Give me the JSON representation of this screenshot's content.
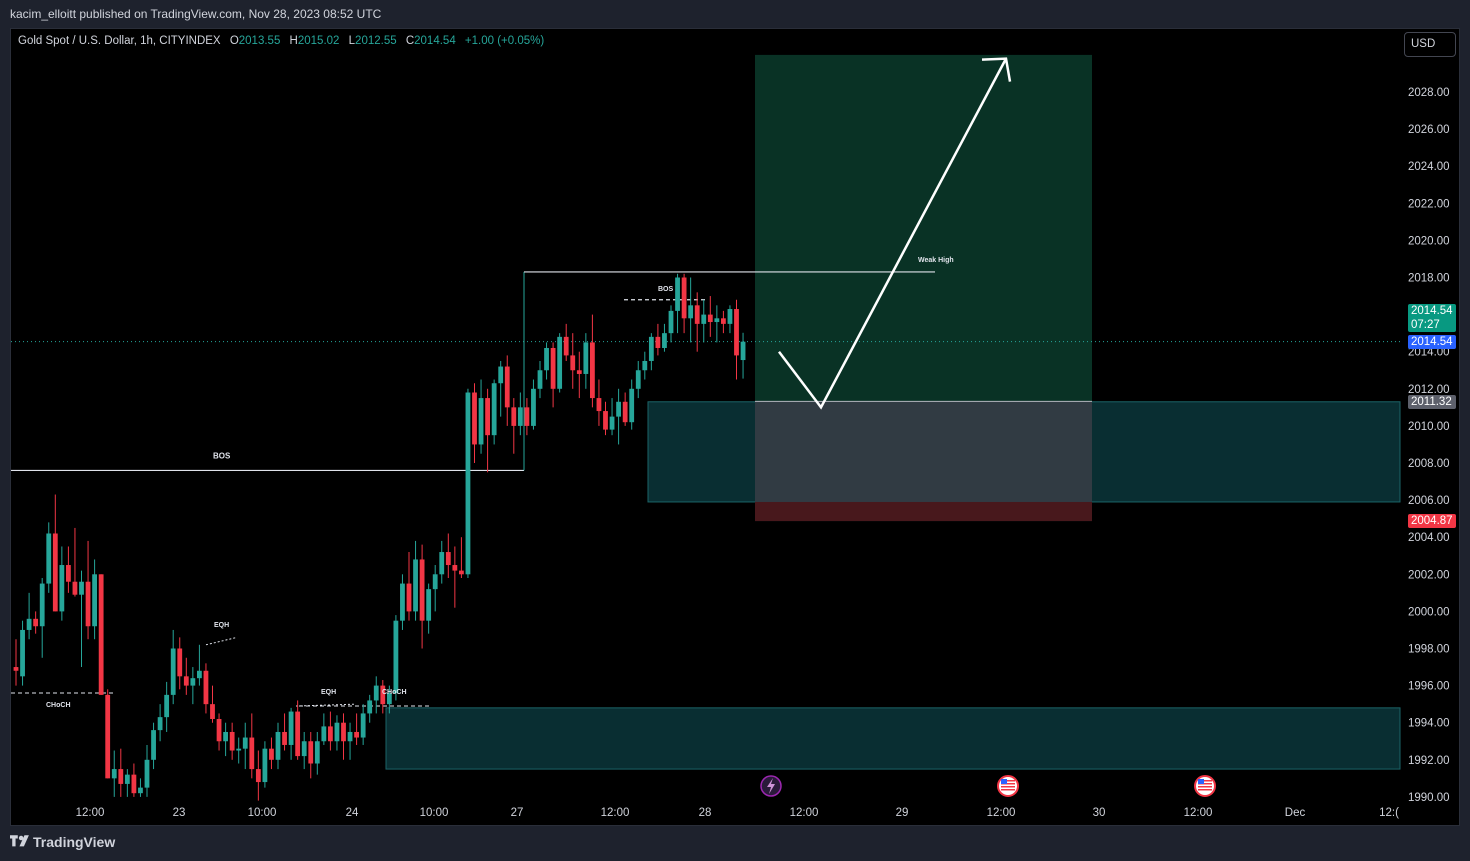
{
  "header": {
    "publisher_line": "kacim_elloitt published on TradingView.com, Nov 28, 2023 08:52 UTC"
  },
  "legend": {
    "symbol": "Gold Spot / U.S. Dollar, 1h, CITYINDEX",
    "open_label": "O",
    "open": "2013.55",
    "high_label": "H",
    "high": "2015.02",
    "low_label": "L",
    "low": "2012.55",
    "close_label": "C",
    "close": "2014.54",
    "change": "+1.00 (+0.05%)"
  },
  "currency_button": "USD",
  "price_tags": {
    "last_price": "2014.54",
    "countdown": "07:27",
    "blue_price": "2014.54",
    "entry_price": "2011.32",
    "stop_price": "2004.87"
  },
  "colors": {
    "up": "#26a69a",
    "down": "#f23645",
    "profit_zone": "#0b3b2c",
    "loss_zone": "#4a161a",
    "demand_zone": "#0b3338",
    "entry_zone": "#343c44",
    "last_price_tag": "#089981",
    "blue_tag": "#2962ff",
    "stop_tag": "#f23645",
    "entry_tag": "#5d606b"
  },
  "annotations": {
    "bos_left": "BOS",
    "bos_right": "BOS",
    "weak_high": "Weak High",
    "eqh_1": "EQH",
    "eqh_2": "EQH",
    "choch_1": "CHoCH",
    "choch_2": "CHoCH"
  },
  "event_icons": [
    "lightning-icon",
    "us-flag-icon",
    "us-flag-icon"
  ],
  "footer": {
    "brand": "TradingView"
  },
  "chart_data": {
    "type": "candlestick",
    "title": "Gold Spot / U.S. Dollar, 1h, CITYINDEX",
    "ylim": [
      1990,
      2030
    ],
    "y_ticks": [
      "2028.00",
      "2026.00",
      "2024.00",
      "2022.00",
      "2020.00",
      "2018.00",
      "2016.00",
      "2014.00",
      "2012.00",
      "2010.00",
      "2008.00",
      "2006.00",
      "2004.00",
      "2002.00",
      "2000.00",
      "1998.00",
      "1996.00",
      "1994.00",
      "1992.00",
      "1990.00"
    ],
    "x_ticks": [
      "12:00",
      "23",
      "10:00",
      "24",
      "10:00",
      "27",
      "12:00",
      "28",
      "12:00",
      "29",
      "12:00",
      "30",
      "12:00",
      "Dec",
      "12:("
    ],
    "levels": {
      "bos_left": 2007.6,
      "bos_right": 2016.8,
      "weak_high": 2018.3,
      "choch_left": 1995.6,
      "choch_right": 1994.9,
      "last_price": 2014.54,
      "entry": 2011.32,
      "stop": 2004.87,
      "target": 2030.0
    },
    "zones": {
      "demand_high": [
        2011.3,
        2005.9
      ],
      "demand_low": [
        1994.8,
        1991.5
      ]
    },
    "projection_path": [
      2014.0,
      2011.0,
      2029.8
    ],
    "candles": [
      {
        "o": 1997.0,
        "h": 1998.5,
        "l": 1996.0,
        "c": 1996.8
      },
      {
        "o": 1996.5,
        "h": 1999.5,
        "l": 1996.0,
        "c": 1999.0
      },
      {
        "o": 1999.0,
        "h": 2001.0,
        "l": 1998.5,
        "c": 1999.6
      },
      {
        "o": 1999.6,
        "h": 2000.0,
        "l": 1998.8,
        "c": 1999.2
      },
      {
        "o": 1999.2,
        "h": 2001.8,
        "l": 1997.5,
        "c": 2001.5
      },
      {
        "o": 2001.5,
        "h": 2004.8,
        "l": 2001.0,
        "c": 2004.2
      },
      {
        "o": 2004.2,
        "h": 2006.3,
        "l": 2000.0,
        "c": 2000.0
      },
      {
        "o": 2000.0,
        "h": 2003.5,
        "l": 1999.5,
        "c": 2002.5
      },
      {
        "o": 2002.5,
        "h": 2003.5,
        "l": 2001.0,
        "c": 2001.6
      },
      {
        "o": 2001.6,
        "h": 2004.5,
        "l": 2000.8,
        "c": 2000.9
      },
      {
        "o": 2000.9,
        "h": 2002.2,
        "l": 1997.0,
        "c": 2001.6
      },
      {
        "o": 2001.6,
        "h": 2003.8,
        "l": 1998.5,
        "c": 1999.2
      },
      {
        "o": 1999.2,
        "h": 2002.8,
        "l": 1998.5,
        "c": 2002.0
      },
      {
        "o": 2002.0,
        "h": 2002.0,
        "l": 1995.5,
        "c": 1995.5
      },
      {
        "o": 1995.5,
        "h": 1995.8,
        "l": 1991.0,
        "c": 1991.0
      },
      {
        "o": 1991.0,
        "h": 1992.5,
        "l": 1990.0,
        "c": 1991.5
      },
      {
        "o": 1991.5,
        "h": 1992.6,
        "l": 1990.0,
        "c": 1990.7
      },
      {
        "o": 1990.7,
        "h": 1991.5,
        "l": 1990.0,
        "c": 1991.2
      },
      {
        "o": 1991.2,
        "h": 1991.8,
        "l": 1990.0,
        "c": 1990.2
      },
      {
        "o": 1990.2,
        "h": 1991.0,
        "l": 1990.0,
        "c": 1990.5
      },
      {
        "o": 1990.5,
        "h": 1992.8,
        "l": 1990.0,
        "c": 1992.0
      },
      {
        "o": 1992.0,
        "h": 1994.0,
        "l": 1991.5,
        "c": 1993.6
      },
      {
        "o": 1993.6,
        "h": 1995.0,
        "l": 1993.0,
        "c": 1994.3
      },
      {
        "o": 1994.3,
        "h": 1996.2,
        "l": 1993.5,
        "c": 1995.5
      },
      {
        "o": 1995.5,
        "h": 1999.0,
        "l": 1995.0,
        "c": 1998.0
      },
      {
        "o": 1998.0,
        "h": 1998.6,
        "l": 1995.8,
        "c": 1996.5
      },
      {
        "o": 1996.5,
        "h": 1997.5,
        "l": 1995.5,
        "c": 1996.0
      },
      {
        "o": 1996.0,
        "h": 1997.0,
        "l": 1995.0,
        "c": 1996.4
      },
      {
        "o": 1996.4,
        "h": 1998.2,
        "l": 1996.0,
        "c": 1996.8
      },
      {
        "o": 1996.8,
        "h": 1997.2,
        "l": 1994.5,
        "c": 1995.0
      },
      {
        "o": 1995.0,
        "h": 1996.0,
        "l": 1994.0,
        "c": 1994.2
      },
      {
        "o": 1994.2,
        "h": 1994.5,
        "l": 1992.5,
        "c": 1993.0
      },
      {
        "o": 1993.0,
        "h": 1994.0,
        "l": 1992.2,
        "c": 1993.5
      },
      {
        "o": 1993.5,
        "h": 1994.0,
        "l": 1992.0,
        "c": 1992.5
      },
      {
        "o": 1992.5,
        "h": 1993.2,
        "l": 1991.8,
        "c": 1992.6
      },
      {
        "o": 1992.6,
        "h": 1994.0,
        "l": 1991.5,
        "c": 1993.2
      },
      {
        "o": 1993.2,
        "h": 1994.5,
        "l": 1991.0,
        "c": 1991.5
      },
      {
        "o": 1991.5,
        "h": 1992.5,
        "l": 1989.8,
        "c": 1990.8
      },
      {
        "o": 1990.8,
        "h": 1993.0,
        "l": 1990.5,
        "c": 1992.6
      },
      {
        "o": 1992.6,
        "h": 1993.2,
        "l": 1991.5,
        "c": 1992.0
      },
      {
        "o": 1992.0,
        "h": 1994.0,
        "l": 1991.5,
        "c": 1993.5
      },
      {
        "o": 1993.5,
        "h": 1994.5,
        "l": 1992.5,
        "c": 1992.8
      },
      {
        "o": 1992.8,
        "h": 1994.8,
        "l": 1992.0,
        "c": 1994.6
      },
      {
        "o": 1994.6,
        "h": 1995.2,
        "l": 1992.0,
        "c": 1992.2
      },
      {
        "o": 1992.2,
        "h": 1993.5,
        "l": 1991.5,
        "c": 1993.0
      },
      {
        "o": 1993.0,
        "h": 1993.5,
        "l": 1991.0,
        "c": 1991.8
      },
      {
        "o": 1991.8,
        "h": 1993.5,
        "l": 1991.2,
        "c": 1993.0
      },
      {
        "o": 1993.0,
        "h": 1994.5,
        "l": 1992.8,
        "c": 1993.8
      },
      {
        "o": 1993.8,
        "h": 1994.6,
        "l": 1992.5,
        "c": 1993.0
      },
      {
        "o": 1993.0,
        "h": 1994.4,
        "l": 1992.5,
        "c": 1994.0
      },
      {
        "o": 1994.0,
        "h": 1994.5,
        "l": 1992.0,
        "c": 1993.0
      },
      {
        "o": 1993.0,
        "h": 1994.0,
        "l": 1992.0,
        "c": 1993.5
      },
      {
        "o": 1993.5,
        "h": 1994.5,
        "l": 1992.8,
        "c": 1993.2
      },
      {
        "o": 1993.2,
        "h": 1995.0,
        "l": 1992.8,
        "c": 1994.5
      },
      {
        "o": 1994.5,
        "h": 1995.5,
        "l": 1994.0,
        "c": 1995.2
      },
      {
        "o": 1995.2,
        "h": 1996.5,
        "l": 1994.5,
        "c": 1996.0
      },
      {
        "o": 1996.0,
        "h": 1996.3,
        "l": 1994.5,
        "c": 1995.0
      },
      {
        "o": 1995.0,
        "h": 1996.0,
        "l": 1994.5,
        "c": 1995.6
      },
      {
        "o": 1995.6,
        "h": 1999.8,
        "l": 1995.2,
        "c": 1999.5
      },
      {
        "o": 1999.5,
        "h": 2002.0,
        "l": 1999.0,
        "c": 2001.5
      },
      {
        "o": 2001.5,
        "h": 2003.2,
        "l": 1999.5,
        "c": 2000.0
      },
      {
        "o": 2000.0,
        "h": 2003.8,
        "l": 1999.5,
        "c": 2002.8
      },
      {
        "o": 2002.8,
        "h": 2003.6,
        "l": 1998.0,
        "c": 1999.5
      },
      {
        "o": 1999.5,
        "h": 2001.5,
        "l": 1998.8,
        "c": 2001.2
      },
      {
        "o": 2001.2,
        "h": 2002.5,
        "l": 2000.0,
        "c": 2002.0
      },
      {
        "o": 2002.0,
        "h": 2003.8,
        "l": 2001.5,
        "c": 2003.2
      },
      {
        "o": 2003.2,
        "h": 2004.2,
        "l": 2001.8,
        "c": 2002.5
      },
      {
        "o": 2002.5,
        "h": 2003.5,
        "l": 2000.2,
        "c": 2002.2
      },
      {
        "o": 2002.2,
        "h": 2004.0,
        "l": 2001.8,
        "c": 2002.0
      },
      {
        "o": 2002.0,
        "h": 2012.0,
        "l": 2001.8,
        "c": 2011.8
      },
      {
        "o": 2011.8,
        "h": 2012.3,
        "l": 2008.0,
        "c": 2009.0
      },
      {
        "o": 2009.0,
        "h": 2012.5,
        "l": 2008.5,
        "c": 2011.5
      },
      {
        "o": 2011.5,
        "h": 2012.0,
        "l": 2007.5,
        "c": 2009.5
      },
      {
        "o": 2009.5,
        "h": 2012.5,
        "l": 2009.0,
        "c": 2012.3
      },
      {
        "o": 2012.3,
        "h": 2013.5,
        "l": 2010.5,
        "c": 2013.2
      },
      {
        "o": 2013.2,
        "h": 2013.8,
        "l": 2010.0,
        "c": 2011.0
      },
      {
        "o": 2011.0,
        "h": 2011.5,
        "l": 2008.5,
        "c": 2010.0
      },
      {
        "o": 2010.0,
        "h": 2011.8,
        "l": 2009.5,
        "c": 2011.0
      },
      {
        "o": 2011.0,
        "h": 2011.5,
        "l": 2009.5,
        "c": 2010.0
      },
      {
        "o": 2010.0,
        "h": 2012.5,
        "l": 2009.8,
        "c": 2012.0
      },
      {
        "o": 2012.0,
        "h": 2013.5,
        "l": 2011.5,
        "c": 2013.0
      },
      {
        "o": 2013.0,
        "h": 2014.5,
        "l": 2012.5,
        "c": 2014.2
      },
      {
        "o": 2014.2,
        "h": 2014.5,
        "l": 2011.0,
        "c": 2012.0
      },
      {
        "o": 2012.0,
        "h": 2015.0,
        "l": 2011.8,
        "c": 2014.8
      },
      {
        "o": 2014.8,
        "h": 2015.5,
        "l": 2013.5,
        "c": 2013.8
      },
      {
        "o": 2013.8,
        "h": 2015.0,
        "l": 2012.0,
        "c": 2013.0
      },
      {
        "o": 2013.0,
        "h": 2014.0,
        "l": 2011.5,
        "c": 2012.8
      },
      {
        "o": 2012.8,
        "h": 2015.0,
        "l": 2012.0,
        "c": 2014.5
      },
      {
        "o": 2014.5,
        "h": 2016.0,
        "l": 2011.0,
        "c": 2011.5
      },
      {
        "o": 2011.5,
        "h": 2012.5,
        "l": 2010.0,
        "c": 2010.8
      },
      {
        "o": 2010.8,
        "h": 2011.3,
        "l": 2009.5,
        "c": 2009.8
      },
      {
        "o": 2009.8,
        "h": 2011.5,
        "l": 2009.5,
        "c": 2010.5
      },
      {
        "o": 2010.5,
        "h": 2012.0,
        "l": 2009.0,
        "c": 2011.3
      },
      {
        "o": 2011.3,
        "h": 2011.8,
        "l": 2010.0,
        "c": 2010.2
      },
      {
        "o": 2010.2,
        "h": 2012.5,
        "l": 2009.8,
        "c": 2012.0
      },
      {
        "o": 2012.0,
        "h": 2013.5,
        "l": 2011.5,
        "c": 2013.0
      },
      {
        "o": 2013.0,
        "h": 2014.0,
        "l": 2012.5,
        "c": 2013.5
      },
      {
        "o": 2013.5,
        "h": 2015.0,
        "l": 2013.0,
        "c": 2014.8
      },
      {
        "o": 2014.8,
        "h": 2015.5,
        "l": 2013.8,
        "c": 2014.2
      },
      {
        "o": 2014.2,
        "h": 2015.5,
        "l": 2014.0,
        "c": 2015.0
      },
      {
        "o": 2015.0,
        "h": 2016.5,
        "l": 2014.5,
        "c": 2016.2
      },
      {
        "o": 2016.2,
        "h": 2018.2,
        "l": 2015.0,
        "c": 2018.0
      },
      {
        "o": 2018.0,
        "h": 2018.2,
        "l": 2015.0,
        "c": 2015.8
      },
      {
        "o": 2015.8,
        "h": 2018.0,
        "l": 2014.5,
        "c": 2016.5
      },
      {
        "o": 2016.5,
        "h": 2017.2,
        "l": 2014.0,
        "c": 2015.5
      },
      {
        "o": 2015.5,
        "h": 2016.8,
        "l": 2014.5,
        "c": 2016.0
      },
      {
        "o": 2016.0,
        "h": 2017.0,
        "l": 2014.8,
        "c": 2015.6
      },
      {
        "o": 2015.6,
        "h": 2016.5,
        "l": 2014.5,
        "c": 2015.8
      },
      {
        "o": 2015.8,
        "h": 2016.2,
        "l": 2015.0,
        "c": 2015.5
      },
      {
        "o": 2015.5,
        "h": 2016.5,
        "l": 2015.0,
        "c": 2016.3
      },
      {
        "o": 2016.3,
        "h": 2016.8,
        "l": 2012.5,
        "c": 2013.8
      },
      {
        "o": 2013.55,
        "h": 2015.02,
        "l": 2012.55,
        "c": 2014.54
      }
    ]
  }
}
